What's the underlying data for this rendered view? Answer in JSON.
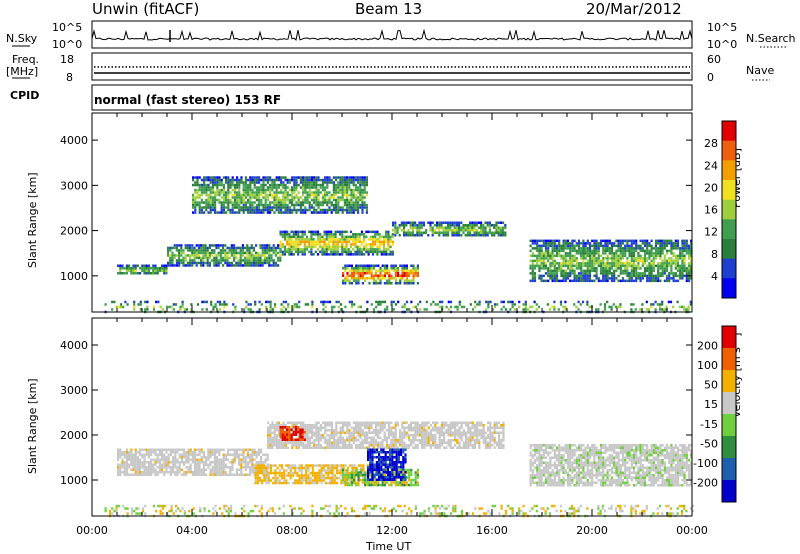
{
  "header": {
    "radar": "Unwin (fitACF)",
    "beam": "Beam 13",
    "date": "20/Mar/2012"
  },
  "top_panels": {
    "nsky_label": "N.Sky",
    "nsky_ticks": [
      "10^5",
      "10^0"
    ],
    "nsearch_label": "N.Search",
    "nsearch_ticks": [
      "10^5",
      "10^0"
    ],
    "freq_label_line1": "Freq.",
    "freq_label_line2": "[MHz]",
    "freq_ticks": [
      "18",
      "8"
    ],
    "nave_label": "Nave",
    "nave_ticks": [
      "60",
      "0"
    ],
    "cpid_label": "CPID",
    "cpid_text": "normal (fast stereo) 153 RF"
  },
  "chart_data": [
    {
      "type": "heatmap",
      "panel": "power",
      "ylabel": "Slant Range [km]",
      "ylim": [
        200,
        4600
      ],
      "yticks": [
        "4000",
        "3000",
        "2000",
        "1000"
      ],
      "xlim_hours": [
        0,
        24
      ],
      "colorbar": {
        "label": "Power [dB]",
        "ticks": [
          "28",
          "24",
          "20",
          "16",
          "12",
          "8",
          "4"
        ],
        "colors": [
          "#0000ee",
          "#1f3fd0",
          "#2a7f3a",
          "#3f9f4f",
          "#9fcf3f",
          "#f0e020",
          "#f2a000",
          "#ee6010",
          "#e00000"
        ]
      },
      "bands": [
        {
          "t": [
            1.0,
            3.0
          ],
          "range": [
            1050,
            1250
          ],
          "power": "8-16"
        },
        {
          "t": [
            3.0,
            7.5
          ],
          "range": [
            1250,
            1700
          ],
          "power": "12-24"
        },
        {
          "t": [
            7.5,
            12.0
          ],
          "range": [
            1500,
            2000
          ],
          "power": "16-28"
        },
        {
          "t": [
            12.0,
            16.5
          ],
          "range": [
            1900,
            2200
          ],
          "power": "12-20"
        },
        {
          "t": [
            10.0,
            13.0
          ],
          "range": [
            850,
            1250
          ],
          "power": "20-30"
        },
        {
          "t": [
            4.0,
            11.0
          ],
          "range": [
            2400,
            3200
          ],
          "power": "4-12"
        },
        {
          "t": [
            17.5,
            24.0
          ],
          "range": [
            900,
            1800
          ],
          "power": "4-20"
        },
        {
          "t": [
            0.5,
            24.0
          ],
          "range": [
            200,
            450
          ],
          "power": "4-12"
        }
      ]
    },
    {
      "type": "heatmap",
      "panel": "velocity",
      "ylabel": "Slant Range [km]",
      "ylim": [
        200,
        4600
      ],
      "yticks": [
        "4000",
        "3000",
        "2000",
        "1000"
      ],
      "xlim_hours": [
        0,
        24
      ],
      "xlabel": "Time UT",
      "xticks": [
        "00:00",
        "04:00",
        "08:00",
        "12:00",
        "16:00",
        "20:00",
        "00:00"
      ],
      "colorbar": {
        "label": "Velocity [m s⁻¹]",
        "ticks": [
          "200",
          "100",
          "50",
          "15",
          "-15",
          "-50",
          "-100",
          "-200"
        ],
        "colors": [
          "#0000cc",
          "#1f5faf",
          "#2f8f3f",
          "#6fcf3f",
          "#c8c8c8",
          "#f2b000",
          "#ee6000",
          "#e00000"
        ]
      },
      "bands": [
        {
          "t": [
            1.0,
            7.0
          ],
          "range": [
            1100,
            1700
          ],
          "velocity": "-15..15"
        },
        {
          "t": [
            7.0,
            16.5
          ],
          "range": [
            1700,
            2300
          ],
          "velocity": "-15..15"
        },
        {
          "t": [
            6.5,
            11.0
          ],
          "range": [
            950,
            1350
          ],
          "velocity": "-50..-15"
        },
        {
          "t": [
            10.0,
            13.0
          ],
          "range": [
            900,
            1250
          ],
          "velocity": "-15..100"
        },
        {
          "t": [
            11.0,
            12.5
          ],
          "range": [
            1000,
            1700
          ],
          "velocity": "100..200"
        },
        {
          "t": [
            7.5,
            8.5
          ],
          "range": [
            1900,
            2200
          ],
          "velocity": "-200..-100"
        },
        {
          "t": [
            17.5,
            24.0
          ],
          "range": [
            900,
            1800
          ],
          "velocity": "-15..50"
        },
        {
          "t": [
            0.5,
            24.0
          ],
          "range": [
            200,
            450
          ],
          "velocity": "-50..15"
        }
      ]
    }
  ]
}
